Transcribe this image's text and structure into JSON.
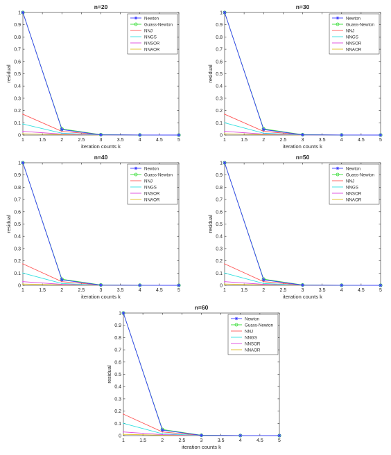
{
  "colors": {
    "Newton": "#3b3bff",
    "Guass-Newton": "#33dd33",
    "NNJ": "#ff5555",
    "NNGS": "#33e0e0",
    "NNSOR": "#dd44dd",
    "NNAOR": "#e0c020",
    "axis": "#262626",
    "background": "#ffffff"
  },
  "chart_data": [
    {
      "type": "line",
      "title": "n=20",
      "xlabel": "iteration counts k",
      "ylabel": "residual",
      "xlim": [
        1,
        5
      ],
      "ylim": [
        0,
        1
      ],
      "xticks": [
        "1",
        "1.5",
        "2",
        "2.5",
        "3",
        "3.5",
        "4",
        "4.5",
        "5"
      ],
      "yticks": [
        "0",
        "0.1",
        "0.2",
        "0.3",
        "0.4",
        "0.5",
        "0.6",
        "0.7",
        "0.8",
        "0.9",
        "1"
      ],
      "legend_position": "top-right",
      "grid": false,
      "x": [
        1,
        2,
        3,
        4,
        5
      ],
      "series": [
        {
          "name": "Newton",
          "values": [
            1,
            0.045,
            0.002,
            0.0005,
            0
          ],
          "marker": "star"
        },
        {
          "name": "Guass-Newton",
          "values": [
            1,
            0.05,
            0.003,
            0.0005,
            0
          ],
          "marker": "circle"
        },
        {
          "name": "NNJ",
          "values": [
            0.17,
            0.03,
            0.002,
            0.0005,
            0
          ],
          "marker": "none"
        },
        {
          "name": "NNGS",
          "values": [
            0.09,
            0.015,
            0.001,
            0.0003,
            0
          ],
          "marker": "none"
        },
        {
          "name": "NNSOR",
          "values": [
            0.03,
            0.008,
            0.001,
            0.0002,
            0
          ],
          "marker": "none"
        },
        {
          "name": "NNAOR",
          "values": [
            0.01,
            0.004,
            0.0005,
            0.0001,
            0
          ],
          "marker": "none"
        }
      ]
    },
    {
      "type": "line",
      "title": "n=30",
      "xlabel": "iteration counts k",
      "ylabel": "residual",
      "xlim": [
        1,
        5
      ],
      "ylim": [
        0,
        1
      ],
      "xticks": [
        "1",
        "1.5",
        "2",
        "2.5",
        "3",
        "3.5",
        "4",
        "4.5",
        "5"
      ],
      "yticks": [
        "0",
        "0.1",
        "0.2",
        "0.3",
        "0.4",
        "0.5",
        "0.6",
        "0.7",
        "0.8",
        "0.9",
        "1"
      ],
      "legend_position": "top-right",
      "grid": false,
      "x": [
        1,
        2,
        3,
        4,
        5
      ],
      "series": [
        {
          "name": "Newton",
          "values": [
            1,
            0.045,
            0.002,
            0.0005,
            0
          ],
          "marker": "star"
        },
        {
          "name": "Guass-Newton",
          "values": [
            1,
            0.05,
            0.003,
            0.0005,
            0
          ],
          "marker": "circle"
        },
        {
          "name": "NNJ",
          "values": [
            0.17,
            0.03,
            0.002,
            0.0005,
            0
          ],
          "marker": "none"
        },
        {
          "name": "NNGS",
          "values": [
            0.1,
            0.015,
            0.001,
            0.0003,
            0
          ],
          "marker": "none"
        },
        {
          "name": "NNSOR",
          "values": [
            0.03,
            0.008,
            0.001,
            0.0002,
            0
          ],
          "marker": "none"
        },
        {
          "name": "NNAOR",
          "values": [
            0.01,
            0.004,
            0.0005,
            0.0001,
            0
          ],
          "marker": "none"
        }
      ]
    },
    {
      "type": "line",
      "title": "n=40",
      "xlabel": "iteration counts k",
      "ylabel": "residual",
      "xlim": [
        1,
        5
      ],
      "ylim": [
        0,
        1
      ],
      "xticks": [
        "1",
        "1.5",
        "2",
        "2.5",
        "3",
        "3.5",
        "4",
        "4.5",
        "5"
      ],
      "yticks": [
        "0",
        "0.1",
        "0.2",
        "0.3",
        "0.4",
        "0.5",
        "0.6",
        "0.7",
        "0.8",
        "0.9",
        "1"
      ],
      "legend_position": "top-right",
      "grid": false,
      "x": [
        1,
        2,
        3,
        4,
        5
      ],
      "series": [
        {
          "name": "Newton",
          "values": [
            1,
            0.045,
            0.002,
            0.0005,
            0
          ],
          "marker": "star"
        },
        {
          "name": "Guass-Newton",
          "values": [
            1,
            0.05,
            0.003,
            0.0005,
            0
          ],
          "marker": "circle"
        },
        {
          "name": "NNJ",
          "values": [
            0.175,
            0.03,
            0.002,
            0.0005,
            0
          ],
          "marker": "none"
        },
        {
          "name": "NNGS",
          "values": [
            0.1,
            0.015,
            0.001,
            0.0003,
            0
          ],
          "marker": "none"
        },
        {
          "name": "NNSOR",
          "values": [
            0.03,
            0.008,
            0.001,
            0.0002,
            0
          ],
          "marker": "none"
        },
        {
          "name": "NNAOR",
          "values": [
            0.01,
            0.004,
            0.0005,
            0.0001,
            0
          ],
          "marker": "none"
        }
      ]
    },
    {
      "type": "line",
      "title": "n=50",
      "xlabel": "iteration counts k",
      "ylabel": "residual",
      "xlim": [
        1,
        5
      ],
      "ylim": [
        0,
        1
      ],
      "xticks": [
        "1",
        "1.5",
        "2",
        "2.5",
        "3",
        "3.5",
        "4",
        "4.5",
        "5"
      ],
      "yticks": [
        "0",
        "0.1",
        "0.2",
        "0.3",
        "0.4",
        "0.5",
        "0.6",
        "0.7",
        "0.8",
        "0.9",
        "1"
      ],
      "legend_position": "top-right",
      "grid": false,
      "x": [
        1,
        2,
        3,
        4,
        5
      ],
      "series": [
        {
          "name": "Newton",
          "values": [
            1,
            0.045,
            0.002,
            0.0005,
            0
          ],
          "marker": "star"
        },
        {
          "name": "Guass-Newton",
          "values": [
            1,
            0.05,
            0.003,
            0.0005,
            0
          ],
          "marker": "circle"
        },
        {
          "name": "NNJ",
          "values": [
            0.175,
            0.03,
            0.002,
            0.0005,
            0
          ],
          "marker": "none"
        },
        {
          "name": "NNGS",
          "values": [
            0.1,
            0.015,
            0.001,
            0.0003,
            0
          ],
          "marker": "none"
        },
        {
          "name": "NNSOR",
          "values": [
            0.03,
            0.008,
            0.001,
            0.0002,
            0
          ],
          "marker": "none"
        },
        {
          "name": "NNAOR",
          "values": [
            0.01,
            0.004,
            0.0005,
            0.0001,
            0
          ],
          "marker": "none"
        }
      ]
    },
    {
      "type": "line",
      "title": "n=60",
      "xlabel": "iteration counts k",
      "ylabel": "residual",
      "xlim": [
        1,
        5
      ],
      "ylim": [
        0,
        1
      ],
      "xticks": [
        "1",
        "1.5",
        "2",
        "2.5",
        "3",
        "3.5",
        "4",
        "4.5",
        "5"
      ],
      "yticks": [
        "0",
        "0.1",
        "0.2",
        "0.3",
        "0.4",
        "0.5",
        "0.6",
        "0.7",
        "0.8",
        "0.9",
        "1"
      ],
      "legend_position": "top-right",
      "grid": false,
      "x": [
        1,
        2,
        3,
        4,
        5
      ],
      "series": [
        {
          "name": "Newton",
          "values": [
            1,
            0.045,
            0.002,
            0.0005,
            0
          ],
          "marker": "star"
        },
        {
          "name": "Guass-Newton",
          "values": [
            1,
            0.05,
            0.003,
            0.0005,
            0
          ],
          "marker": "circle"
        },
        {
          "name": "NNJ",
          "values": [
            0.175,
            0.03,
            0.002,
            0.0005,
            0
          ],
          "marker": "none"
        },
        {
          "name": "NNGS",
          "values": [
            0.1,
            0.015,
            0.001,
            0.0003,
            0
          ],
          "marker": "none"
        },
        {
          "name": "NNSOR",
          "values": [
            0.03,
            0.008,
            0.001,
            0.0002,
            0
          ],
          "marker": "none"
        },
        {
          "name": "NNAOR",
          "values": [
            0.01,
            0.004,
            0.0005,
            0.0001,
            0
          ],
          "marker": "none"
        }
      ]
    }
  ]
}
